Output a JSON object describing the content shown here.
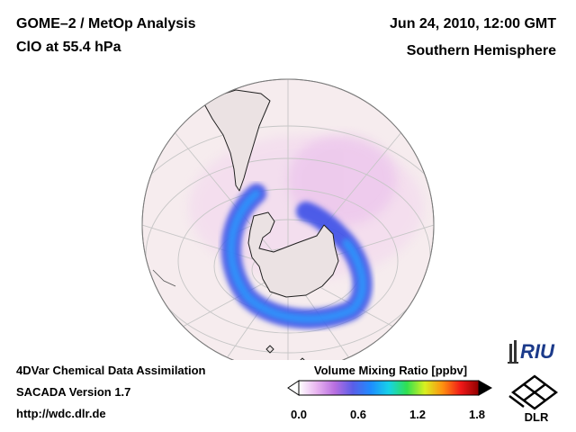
{
  "header": {
    "title": "GOME–2 / MetOp Analysis",
    "subtitle": "ClO at 55.4 hPa",
    "date": "Jun 24, 2010, 12:00 GMT",
    "region": "Southern Hemisphere"
  },
  "footer": {
    "method": "4DVar Chemical Data Assimilation",
    "system": "SACADA Version 1.7",
    "url": "http://wdc.dlr.de"
  },
  "colorbar": {
    "title": "Volume Mixing Ratio [ppbv]",
    "min": 0.0,
    "max": 1.8,
    "ticks": [
      "0.0",
      "0.6",
      "1.2",
      "1.8"
    ],
    "colors": [
      "#ffffff",
      "#e8b4f0",
      "#b86ee0",
      "#5a5ee8",
      "#1e8cff",
      "#16d2e8",
      "#30e050",
      "#d8f020",
      "#ff9010",
      "#f01818",
      "#900000"
    ]
  },
  "logos": {
    "riu": "RIU",
    "dlr": "DLR"
  },
  "map": {
    "ocean_color": "#f4e8ea",
    "grid_color": "#c8c8c8",
    "coast_color": "#202020"
  }
}
